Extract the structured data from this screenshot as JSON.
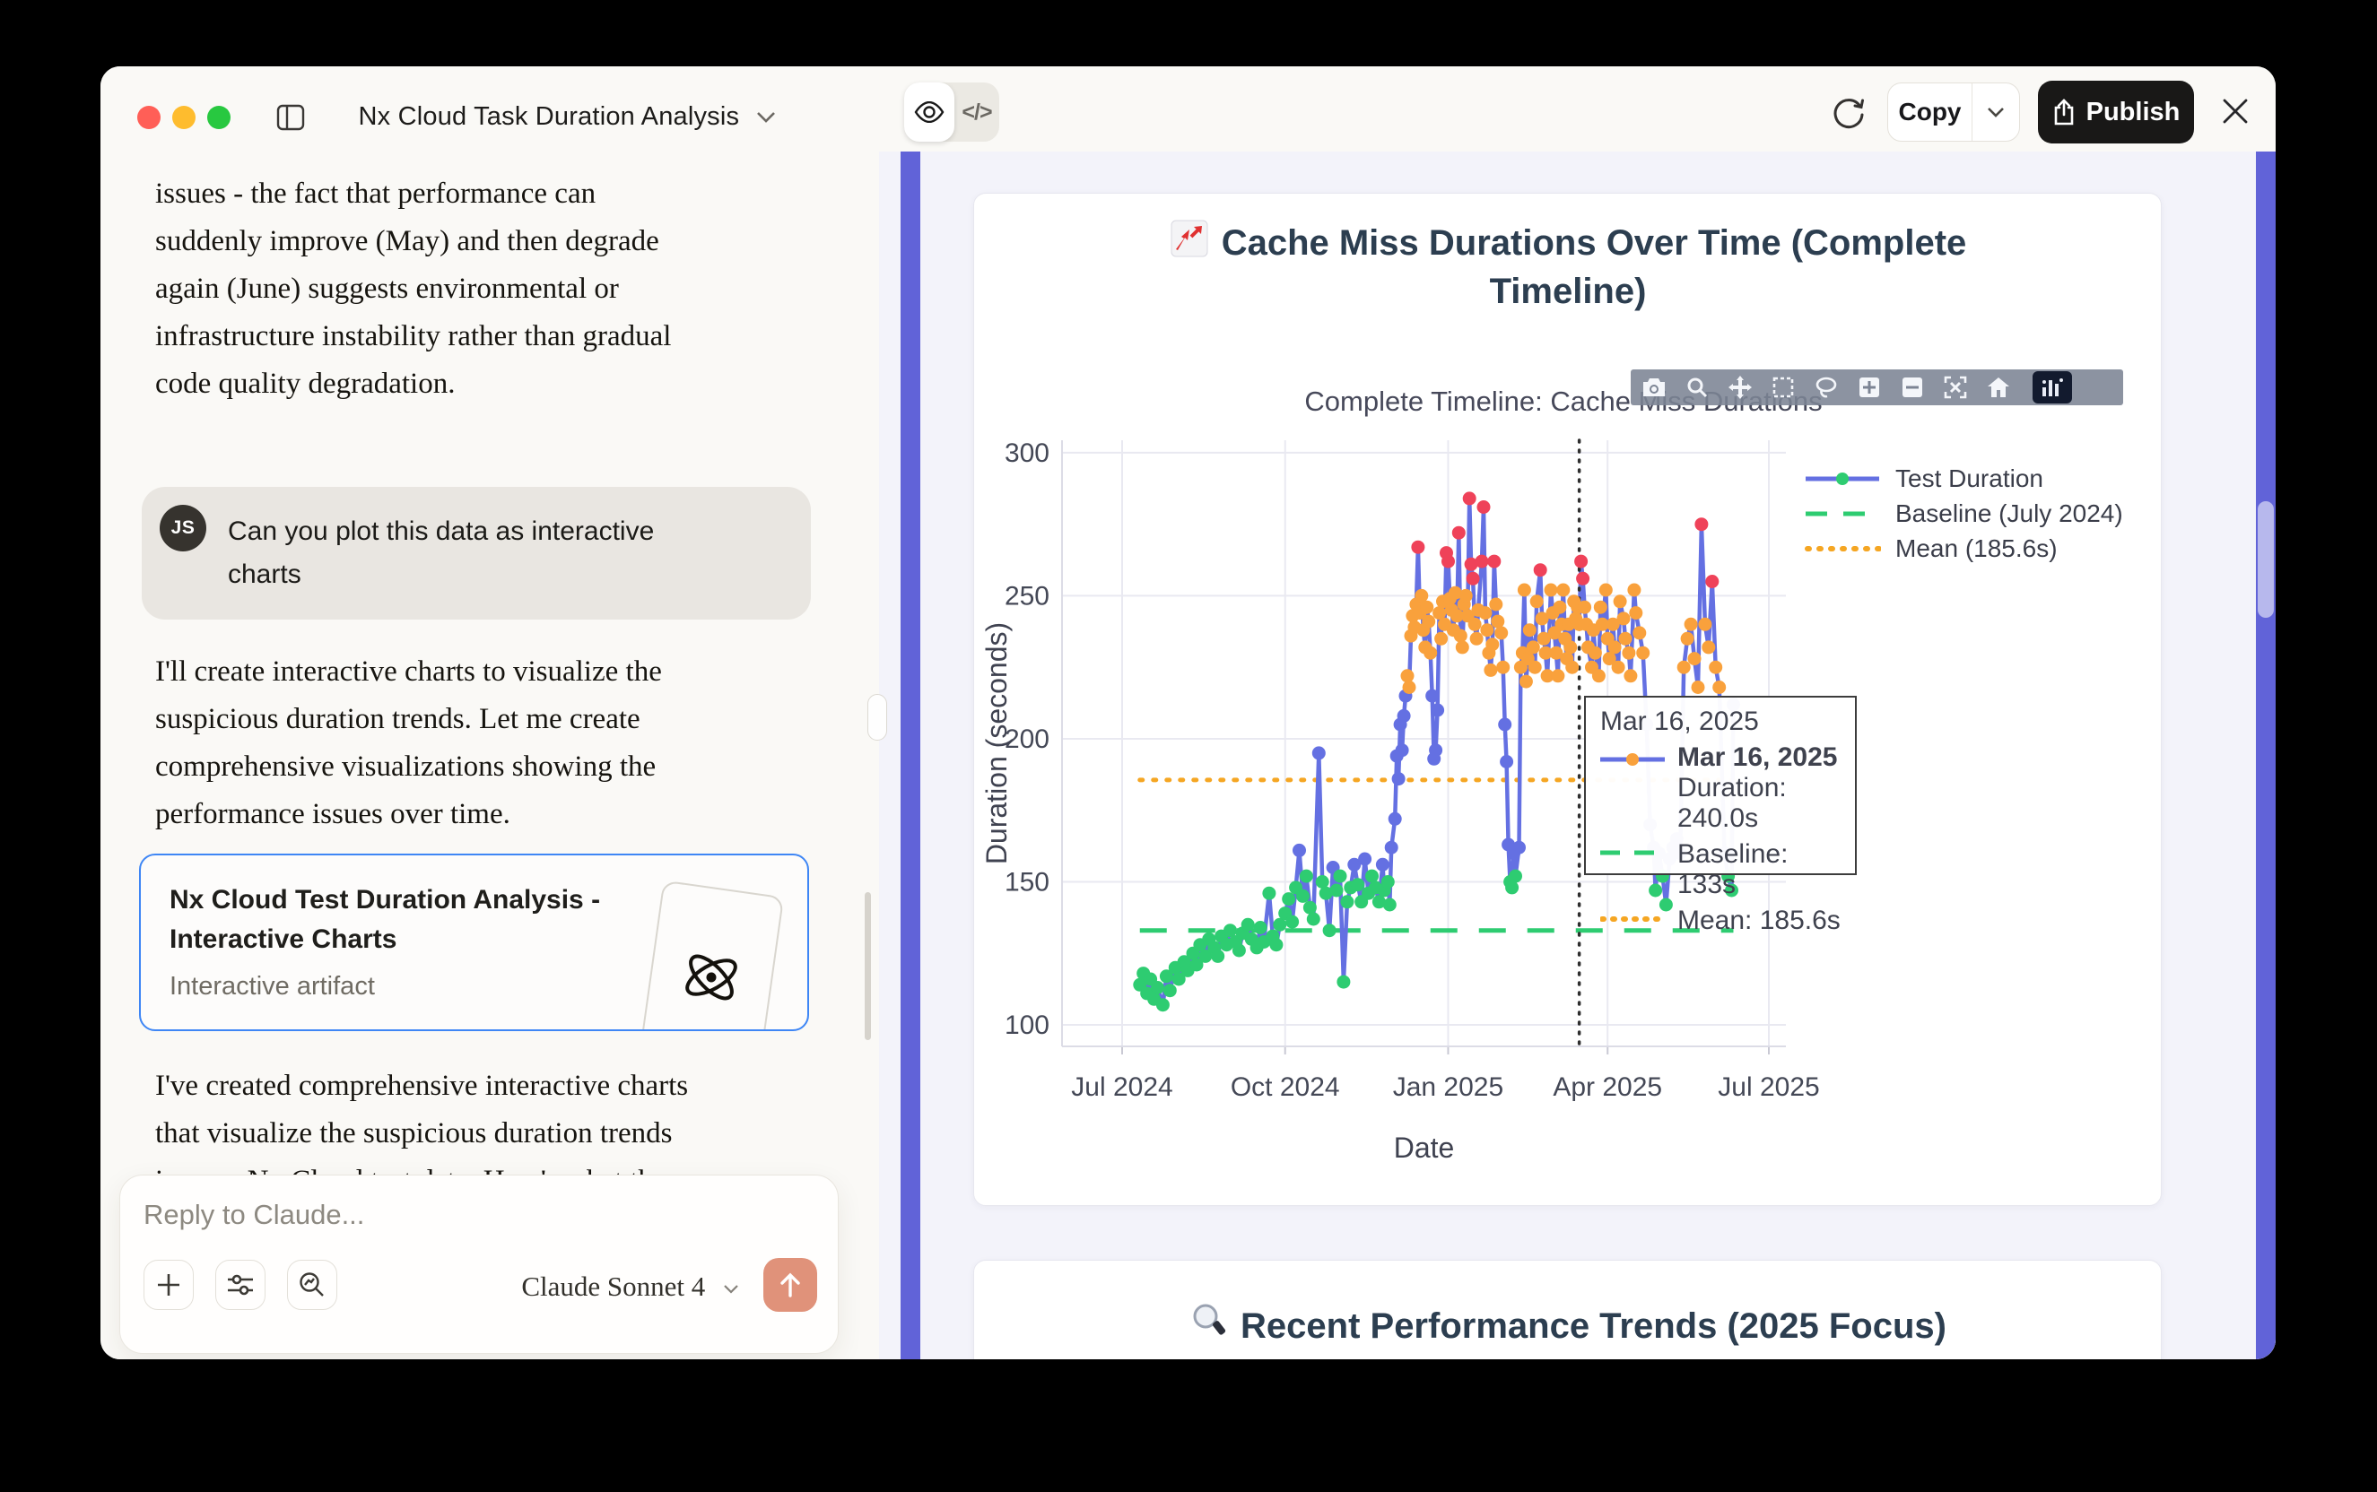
{
  "window": {
    "title": "Nx Cloud Task Duration Analysis"
  },
  "chat": {
    "paragraph_top": "issues - the fact that performance can\nsuddenly improve (May) and then degrade\nagain (June) suggests environmental or\ninfrastructure instability rather than gradual\ncode quality degradation.",
    "user_message": "Can you plot this data as interactive\ncharts",
    "avatar_initials": "JS",
    "response_1": "I'll create interactive charts to visualize the\nsuspicious duration trends. Let me create\ncomprehensive visualizations showing the\nperformance issues over time.",
    "artifact_card": {
      "title": "Nx Cloud Test Duration Analysis -\nInteractive Charts",
      "subtitle": "Interactive artifact"
    },
    "response_2": "I've created comprehensive interactive charts\nthat visualize the suspicious duration trends\nin your Nx Cloud test data. Here's what the",
    "composer": {
      "placeholder": "Reply to Claude...",
      "model_label": "Claude Sonnet 4"
    }
  },
  "artifact_panel": {
    "code_toggle_label": "</>",
    "copy_label": "Copy",
    "publish_label": "Publish",
    "second_card_title": "Recent Performance Trends (2025 Focus)"
  },
  "chart_data": {
    "type": "line",
    "title": "Cache Miss Durations Over Time (Complete Timeline)",
    "subtitle": "Complete Timeline: Cache Miss Durations",
    "xlabel": "Date",
    "ylabel": "Duration (seconds)",
    "ylim": [
      92,
      304
    ],
    "y_ticks": [
      100,
      150,
      200,
      250,
      300
    ],
    "x_ticks": [
      {
        "label": "Jul 2024",
        "day": 0
      },
      {
        "label": "Oct 2024",
        "day": 92
      },
      {
        "label": "Jan 2025",
        "day": 184
      },
      {
        "label": "Apr 2025",
        "day": 274
      },
      {
        "label": "Jul 2025",
        "day": 365
      }
    ],
    "legend": [
      {
        "label": "Test Duration"
      },
      {
        "label": "Baseline (July 2024)"
      },
      {
        "label": "Mean (185.6s)"
      }
    ],
    "series_name": "Test Duration",
    "baseline_value": 133,
    "mean_value": 185.6,
    "vline_day": 258,
    "marker_thresholds": {
      "red_min": 253,
      "orange_min": 217,
      "green_max": 152
    },
    "colors": {
      "line": "#6470e2",
      "green": "#2ecc71",
      "orange": "#f9a13c",
      "red": "#ef4259",
      "mean": "#f5a623",
      "baseline": "#2ecc71",
      "vline": "#2f2f2f"
    },
    "tooltip": {
      "header": "Mar 16, 2025",
      "trace_title": "Mar 16, 2025",
      "duration": "Duration: 240.0s",
      "baseline": "Baseline: 133s",
      "mean": "Mean: 185.6s"
    },
    "points": [
      [
        10,
        114
      ],
      [
        12,
        118
      ],
      [
        14,
        111
      ],
      [
        16,
        116
      ],
      [
        18,
        109
      ],
      [
        20,
        113
      ],
      [
        23,
        107
      ],
      [
        25,
        117
      ],
      [
        27,
        112
      ],
      [
        30,
        120
      ],
      [
        32,
        116
      ],
      [
        35,
        122
      ],
      [
        37,
        119
      ],
      [
        40,
        125
      ],
      [
        42,
        121
      ],
      [
        44,
        128
      ],
      [
        47,
        124
      ],
      [
        49,
        130
      ],
      [
        52,
        127
      ],
      [
        54,
        124
      ],
      [
        56,
        131
      ],
      [
        59,
        128
      ],
      [
        61,
        133
      ],
      [
        64,
        129
      ],
      [
        66,
        126
      ],
      [
        68,
        132
      ],
      [
        71,
        135
      ],
      [
        73,
        130
      ],
      [
        76,
        127
      ],
      [
        78,
        134
      ],
      [
        80,
        129
      ],
      [
        83,
        146
      ],
      [
        85,
        131
      ],
      [
        87,
        128
      ],
      [
        89,
        135
      ],
      [
        92,
        139
      ],
      [
        94,
        144
      ],
      [
        96,
        136
      ],
      [
        98,
        148
      ],
      [
        100,
        161
      ],
      [
        102,
        145
      ],
      [
        104,
        152
      ],
      [
        106,
        141
      ],
      [
        108,
        137
      ],
      [
        111,
        195
      ],
      [
        113,
        150
      ],
      [
        115,
        146
      ],
      [
        117,
        133
      ],
      [
        119,
        155
      ],
      [
        121,
        147
      ],
      [
        123,
        152
      ],
      [
        125,
        115
      ],
      [
        127,
        143
      ],
      [
        129,
        148
      ],
      [
        131,
        156
      ],
      [
        133,
        149
      ],
      [
        135,
        143
      ],
      [
        137,
        158
      ],
      [
        139,
        146
      ],
      [
        141,
        152
      ],
      [
        143,
        148
      ],
      [
        145,
        143
      ],
      [
        147,
        156
      ],
      [
        148,
        147
      ],
      [
        150,
        150
      ],
      [
        151,
        142
      ],
      [
        152,
        162
      ],
      [
        154,
        172
      ],
      [
        155,
        194
      ],
      [
        156,
        186
      ],
      [
        157,
        205
      ],
      [
        158,
        196
      ],
      [
        159,
        208
      ],
      [
        160,
        215
      ],
      [
        161,
        222
      ],
      [
        162,
        218
      ],
      [
        163,
        236
      ],
      [
        164,
        243
      ],
      [
        165,
        239
      ],
      [
        166,
        247
      ],
      [
        167,
        267
      ],
      [
        168,
        244
      ],
      [
        169,
        250
      ],
      [
        170,
        238
      ],
      [
        171,
        232
      ],
      [
        172,
        246
      ],
      [
        173,
        241
      ],
      [
        174,
        230
      ],
      [
        175,
        215
      ],
      [
        176,
        193
      ],
      [
        177,
        196
      ],
      [
        178,
        210
      ],
      [
        179,
        244
      ],
      [
        180,
        235
      ],
      [
        181,
        248
      ],
      [
        182,
        240
      ],
      [
        183,
        265
      ],
      [
        184,
        262
      ],
      [
        185,
        249
      ],
      [
        186,
        245
      ],
      [
        187,
        238
      ],
      [
        188,
        251
      ],
      [
        189,
        243
      ],
      [
        190,
        272
      ],
      [
        191,
        236
      ],
      [
        192,
        232
      ],
      [
        193,
        247
      ],
      [
        194,
        250
      ],
      [
        195,
        243
      ],
      [
        196,
        284
      ],
      [
        197,
        261
      ],
      [
        198,
        256
      ],
      [
        199,
        240
      ],
      [
        200,
        235
      ],
      [
        201,
        245
      ],
      [
        203,
        262
      ],
      [
        204,
        281
      ],
      [
        205,
        244
      ],
      [
        206,
        238
      ],
      [
        207,
        230
      ],
      [
        208,
        224
      ],
      [
        209,
        233
      ],
      [
        210,
        262
      ],
      [
        211,
        247
      ],
      [
        212,
        241
      ],
      [
        214,
        237
      ],
      [
        215,
        225
      ],
      [
        216,
        205
      ],
      [
        217,
        192
      ],
      [
        218,
        163
      ],
      [
        219,
        150
      ],
      [
        220,
        148
      ],
      [
        221,
        160
      ],
      [
        222,
        152
      ],
      [
        224,
        162
      ],
      [
        225,
        225
      ],
      [
        226,
        230
      ],
      [
        227,
        252
      ],
      [
        228,
        220
      ],
      [
        229,
        228
      ],
      [
        230,
        238
      ],
      [
        232,
        232
      ],
      [
        233,
        225
      ],
      [
        234,
        248
      ],
      [
        236,
        259
      ],
      [
        237,
        242
      ],
      [
        238,
        235
      ],
      [
        239,
        230
      ],
      [
        240,
        222
      ],
      [
        242,
        252
      ],
      [
        243,
        244
      ],
      [
        244,
        237
      ],
      [
        245,
        230
      ],
      [
        246,
        222
      ],
      [
        247,
        246
      ],
      [
        248,
        240
      ],
      [
        249,
        252
      ],
      [
        250,
        235
      ],
      [
        251,
        228
      ],
      [
        252,
        240
      ],
      [
        253,
        232
      ],
      [
        254,
        225
      ],
      [
        255,
        248
      ],
      [
        256,
        242
      ],
      [
        257,
        246
      ],
      [
        258,
        240
      ],
      [
        259,
        262
      ],
      [
        260,
        256
      ],
      [
        261,
        246
      ],
      [
        262,
        240
      ],
      [
        263,
        232
      ],
      [
        265,
        225
      ],
      [
        266,
        238
      ],
      [
        267,
        230
      ],
      [
        269,
        222
      ],
      [
        270,
        246
      ],
      [
        271,
        240
      ],
      [
        273,
        252
      ],
      [
        274,
        235
      ],
      [
        275,
        228
      ],
      [
        277,
        240
      ],
      [
        278,
        232
      ],
      [
        280,
        225
      ],
      [
        281,
        248
      ],
      [
        283,
        242
      ],
      [
        284,
        235
      ],
      [
        286,
        230
      ],
      [
        287,
        222
      ],
      [
        289,
        252
      ],
      [
        290,
        244
      ],
      [
        292,
        237
      ],
      [
        294,
        230
      ],
      [
        296,
        205
      ],
      [
        298,
        170
      ],
      [
        300,
        162
      ],
      [
        301,
        147
      ],
      [
        303,
        160
      ],
      [
        305,
        152
      ],
      [
        307,
        142
      ],
      [
        309,
        158
      ],
      [
        311,
        162
      ],
      [
        313,
        165
      ],
      [
        315,
        160
      ],
      [
        317,
        225
      ],
      [
        319,
        235
      ],
      [
        321,
        240
      ],
      [
        323,
        228
      ],
      [
        325,
        218
      ],
      [
        327,
        275
      ],
      [
        329,
        240
      ],
      [
        331,
        232
      ],
      [
        333,
        255
      ],
      [
        335,
        225
      ],
      [
        337,
        218
      ],
      [
        340,
        160
      ],
      [
        342,
        152
      ],
      [
        344,
        147
      ],
      [
        345,
        212
      ]
    ]
  }
}
